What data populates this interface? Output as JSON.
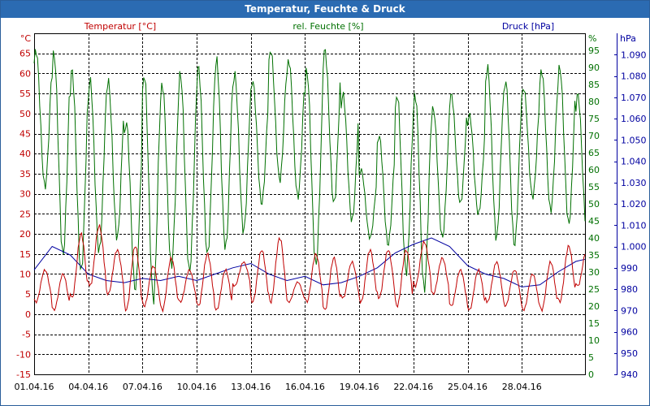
{
  "window": {
    "title": "Temperatur, Feuchte & Druck"
  },
  "colors": {
    "temperature": "#c00000",
    "humidity": "#007000",
    "pressure": "#0000a0",
    "titlebar": "#2b6bb2"
  },
  "chart_data": {
    "type": "line",
    "title": "Temperatur, Feuchte & Druck",
    "grid": true,
    "x_ticks": [
      "01.04.16",
      "04.04.16",
      "07.04.16",
      "10.04.16",
      "13.04.16",
      "16.04.16",
      "19.04.16",
      "22.04.16",
      "25.04.16",
      "28.04.16"
    ],
    "x_range_days": [
      0,
      30.5
    ],
    "axes": {
      "temperature": {
        "label": "Temperatur [°C]",
        "unit": "°C",
        "ylim": [
          -15,
          70
        ],
        "ticks": [
          -15,
          -10,
          -5,
          0,
          5,
          10,
          15,
          20,
          25,
          30,
          35,
          40,
          45,
          50,
          55,
          60,
          65
        ]
      },
      "humidity": {
        "label": "rel. Feuchte [%]",
        "unit": "%",
        "ylim": [
          0,
          100
        ],
        "ticks": [
          0,
          5,
          10,
          15,
          20,
          25,
          30,
          35,
          40,
          45,
          50,
          55,
          60,
          65,
          70,
          75,
          80,
          85,
          90,
          95
        ]
      },
      "pressure": {
        "label": "Druck [hPa]",
        "unit": "hPa",
        "ylim": [
          940,
          1100
        ],
        "ticks": [
          "940",
          "950",
          "960",
          "970",
          "980",
          "990",
          "1.000",
          "1.010",
          "1.020",
          "1.030",
          "1.040",
          "1.050",
          "1.060",
          "1.070",
          "1.080",
          "1.090"
        ]
      }
    },
    "series": [
      {
        "name": "Temperatur [°C]",
        "axis": "temperature",
        "daily_min": [
          3,
          1,
          4,
          7,
          5,
          1,
          2,
          1,
          3,
          2,
          1,
          7,
          3,
          3,
          3,
          3,
          1,
          4,
          3,
          4,
          2,
          7,
          5,
          2,
          1,
          3,
          2,
          1,
          1,
          3,
          7
        ],
        "daily_max": [
          11,
          10,
          20,
          22,
          16,
          17,
          12,
          14,
          11,
          15,
          11,
          13,
          16,
          19,
          8,
          15,
          14,
          13,
          16,
          16,
          16,
          18,
          14,
          11,
          11,
          13,
          11,
          10,
          13,
          17,
          16
        ]
      },
      {
        "name": "rel. Feuchte [%]",
        "axis": "humidity",
        "daily_min": [
          55,
          35,
          30,
          36,
          40,
          25,
          22,
          32,
          30,
          35,
          37,
          42,
          50,
          57,
          52,
          32,
          50,
          45,
          40,
          38,
          30,
          25,
          40,
          50,
          47,
          40,
          38,
          52,
          48,
          44,
          42
        ],
        "daily_max": [
          95,
          94,
          89,
          86,
          86,
          74,
          88,
          85,
          88,
          90,
          92,
          88,
          86,
          95,
          92,
          89,
          95,
          82,
          60,
          70,
          82,
          82,
          78,
          82,
          76,
          90,
          86,
          84,
          89,
          90,
          82
        ]
      },
      {
        "name": "Druck [hPa]",
        "axis": "pressure",
        "days": [
          0,
          1,
          2,
          3,
          4,
          5,
          6,
          7,
          8,
          9,
          10,
          11,
          12,
          13,
          14,
          15,
          16,
          17,
          18,
          19,
          20,
          21,
          22,
          23,
          24,
          25,
          26,
          27,
          28,
          29,
          30,
          30.5
        ],
        "values": [
          989,
          1000,
          996,
          987,
          984,
          983,
          985,
          984,
          986,
          984,
          987,
          990,
          992,
          987,
          984,
          986,
          982,
          983,
          986,
          990,
          997,
          1001,
          1004,
          1000,
          991,
          987,
          985,
          981,
          982,
          988,
          993,
          994
        ]
      }
    ]
  }
}
